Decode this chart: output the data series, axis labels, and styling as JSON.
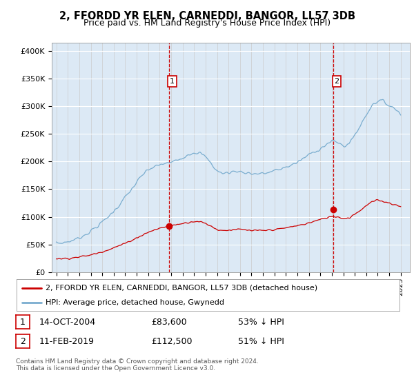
{
  "title": "2, FFORDD YR ELEN, CARNEDDI, BANGOR, LL57 3DB",
  "subtitle": "Price paid vs. HM Land Registry's House Price Index (HPI)",
  "background_color": "#dce9f5",
  "red_color": "#cc0000",
  "blue_color": "#7aadcf",
  "ylabel_ticks": [
    "£0",
    "£50K",
    "£100K",
    "£150K",
    "£200K",
    "£250K",
    "£300K",
    "£350K",
    "£400K"
  ],
  "ytick_values": [
    0,
    50000,
    100000,
    150000,
    200000,
    250000,
    300000,
    350000,
    400000
  ],
  "ylim": [
    0,
    415000
  ],
  "xlim_start": 1994.6,
  "xlim_end": 2025.8,
  "sale1_x": 2004.79,
  "sale1_y": 83600,
  "sale2_x": 2019.12,
  "sale2_y": 112500,
  "legend_line1": "2, FFORDD YR ELEN, CARNEDDI, BANGOR, LL57 3DB (detached house)",
  "legend_line2": "HPI: Average price, detached house, Gwynedd",
  "table_row1": [
    "1",
    "14-OCT-2004",
    "£83,600",
    "53% ↓ HPI"
  ],
  "table_row2": [
    "2",
    "11-FEB-2019",
    "£112,500",
    "51% ↓ HPI"
  ],
  "footer": "Contains HM Land Registry data © Crown copyright and database right 2024.\nThis data is licensed under the Open Government Licence v3.0.",
  "hpi_anchors_x": [
    1995.0,
    1995.5,
    1996.0,
    1996.5,
    1997.0,
    1997.5,
    1998.0,
    1998.5,
    1999.0,
    1999.5,
    2000.0,
    2000.5,
    2001.0,
    2001.5,
    2002.0,
    2002.5,
    2003.0,
    2003.5,
    2004.0,
    2004.5,
    2005.0,
    2005.5,
    2006.0,
    2006.5,
    2007.0,
    2007.5,
    2008.0,
    2008.5,
    2009.0,
    2009.5,
    2010.0,
    2010.5,
    2011.0,
    2011.5,
    2012.0,
    2012.5,
    2013.0,
    2013.5,
    2014.0,
    2014.5,
    2015.0,
    2015.5,
    2016.0,
    2016.5,
    2017.0,
    2017.5,
    2018.0,
    2018.5,
    2019.0,
    2019.5,
    2020.0,
    2020.5,
    2021.0,
    2021.5,
    2022.0,
    2022.5,
    2023.0,
    2023.5,
    2024.0,
    2024.5,
    2025.0
  ],
  "hpi_anchors_y": [
    52000,
    53000,
    55000,
    58000,
    62000,
    68000,
    74000,
    82000,
    90000,
    100000,
    110000,
    122000,
    135000,
    148000,
    162000,
    175000,
    185000,
    190000,
    193000,
    197000,
    198000,
    202000,
    208000,
    213000,
    217000,
    215000,
    208000,
    196000,
    183000,
    178000,
    180000,
    182000,
    182000,
    180000,
    178000,
    178000,
    178000,
    180000,
    183000,
    186000,
    190000,
    194000,
    198000,
    205000,
    212000,
    218000,
    224000,
    230000,
    236000,
    235000,
    228000,
    232000,
    248000,
    265000,
    285000,
    302000,
    310000,
    308000,
    302000,
    295000,
    288000
  ],
  "red_anchors_x": [
    1995.0,
    1995.5,
    1996.0,
    1996.5,
    1997.0,
    1997.5,
    1998.0,
    1998.5,
    1999.0,
    1999.5,
    2000.0,
    2000.5,
    2001.0,
    2001.5,
    2002.0,
    2002.5,
    2003.0,
    2003.5,
    2004.0,
    2004.5,
    2005.0,
    2005.5,
    2006.0,
    2006.5,
    2007.0,
    2007.5,
    2008.0,
    2008.5,
    2009.0,
    2009.5,
    2010.0,
    2010.5,
    2011.0,
    2011.5,
    2012.0,
    2012.5,
    2013.0,
    2013.5,
    2014.0,
    2014.5,
    2015.0,
    2015.5,
    2016.0,
    2016.5,
    2017.0,
    2017.5,
    2018.0,
    2018.5,
    2019.0,
    2019.5,
    2020.0,
    2020.5,
    2021.0,
    2021.5,
    2022.0,
    2022.5,
    2023.0,
    2023.5,
    2024.0,
    2024.5,
    2025.0
  ],
  "red_anchors_y": [
    24000,
    24500,
    25000,
    26000,
    27500,
    29000,
    31000,
    34000,
    37000,
    40500,
    44000,
    48000,
    52000,
    57000,
    62000,
    67000,
    72000,
    76000,
    79000,
    82000,
    84000,
    86000,
    88000,
    90000,
    92000,
    91000,
    88000,
    83000,
    77000,
    75000,
    76000,
    77000,
    77000,
    76000,
    75000,
    75000,
    75000,
    76000,
    77000,
    78000,
    80000,
    82000,
    84000,
    86000,
    89000,
    92000,
    95000,
    98000,
    101000,
    100000,
    97000,
    98000,
    105000,
    112000,
    120000,
    127000,
    130000,
    128000,
    125000,
    122000,
    118000
  ]
}
